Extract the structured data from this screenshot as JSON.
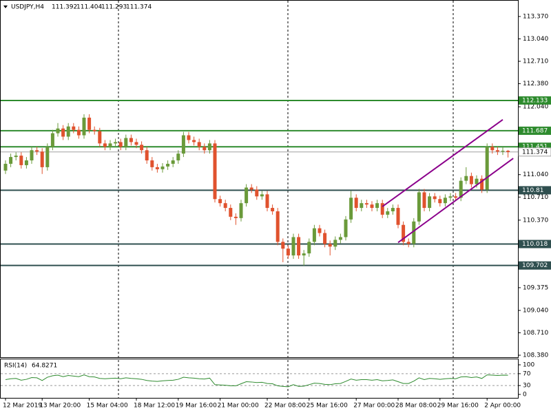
{
  "chart_data": {
    "type": "candlestick",
    "title": "USDJPY,H4",
    "bull_color": "#6a9a3a",
    "bear_color": "#e0522e",
    "categories": [
      "12 Mar 2019",
      null,
      null,
      null,
      null,
      null,
      null,
      "13 Mar 20:00",
      null,
      null,
      null,
      null,
      null,
      null,
      null,
      null,
      "15 Mar 04:00",
      null,
      null,
      null,
      null,
      null,
      null,
      null,
      null,
      "18 Mar 12:00",
      null,
      null,
      null,
      null,
      null,
      null,
      null,
      "19 Mar 16:00",
      null,
      null,
      null,
      null,
      null,
      null,
      null,
      "21 Mar 00:00",
      null,
      null,
      null,
      null,
      null,
      null,
      null,
      null,
      "22 Mar 08:00",
      null,
      null,
      null,
      null,
      null,
      null,
      null,
      "25 Mar 16:00",
      null,
      null,
      null,
      null,
      null,
      null,
      null,
      null,
      "27 Mar 00:00",
      null,
      null,
      null,
      null,
      null,
      null,
      null,
      "28 Mar 08:00",
      null,
      null,
      null,
      null,
      null,
      null,
      null,
      "29 Mar 16:00",
      null,
      null,
      null,
      null,
      null,
      null,
      null,
      null,
      "2 Apr 00:00",
      null,
      null,
      null,
      null
    ],
    "candles": [
      [
        111.1,
        111.25,
        111.05,
        111.2
      ],
      [
        111.2,
        111.35,
        111.15,
        111.3
      ],
      [
        111.3,
        111.37,
        111.25,
        111.32
      ],
      [
        111.32,
        111.37,
        111.13,
        111.18
      ],
      [
        111.18,
        111.3,
        111.13,
        111.25
      ],
      [
        111.25,
        111.45,
        111.2,
        111.4
      ],
      [
        111.4,
        111.45,
        111.33,
        111.38
      ],
      [
        111.38,
        111.43,
        111.05,
        111.15
      ],
      [
        111.15,
        111.5,
        111.1,
        111.45
      ],
      [
        111.45,
        111.7,
        111.4,
        111.65
      ],
      [
        111.65,
        111.8,
        111.6,
        111.72
      ],
      [
        111.72,
        111.77,
        111.55,
        111.6
      ],
      [
        111.6,
        111.8,
        111.55,
        111.75
      ],
      [
        111.75,
        111.8,
        111.65,
        111.7
      ],
      [
        111.7,
        111.75,
        111.57,
        111.62
      ],
      [
        111.62,
        111.93,
        111.57,
        111.88
      ],
      [
        111.88,
        111.93,
        111.65,
        111.7
      ],
      [
        111.7,
        111.75,
        111.63,
        111.68
      ],
      [
        111.68,
        111.73,
        111.45,
        111.5
      ],
      [
        111.5,
        111.55,
        111.4,
        111.45
      ],
      [
        111.45,
        111.55,
        111.4,
        111.5
      ],
      [
        111.5,
        111.57,
        111.45,
        111.52
      ],
      [
        111.52,
        111.57,
        111.4,
        111.45
      ],
      [
        111.45,
        111.63,
        111.4,
        111.58
      ],
      [
        111.58,
        111.63,
        111.47,
        111.52
      ],
      [
        111.52,
        111.57,
        111.43,
        111.48
      ],
      [
        111.48,
        111.53,
        111.35,
        111.4
      ],
      [
        111.4,
        111.45,
        111.2,
        111.25
      ],
      [
        111.25,
        111.3,
        111.1,
        111.15
      ],
      [
        111.15,
        111.2,
        111.07,
        111.12
      ],
      [
        111.12,
        111.21,
        111.07,
        111.16
      ],
      [
        111.16,
        111.25,
        111.11,
        111.2
      ],
      [
        111.2,
        111.3,
        111.15,
        111.25
      ],
      [
        111.25,
        111.4,
        111.2,
        111.35
      ],
      [
        111.35,
        111.67,
        111.3,
        111.62
      ],
      [
        111.62,
        111.67,
        111.5,
        111.55
      ],
      [
        111.55,
        111.6,
        111.47,
        111.52
      ],
      [
        111.52,
        111.57,
        111.4,
        111.45
      ],
      [
        111.45,
        111.5,
        111.35,
        111.4
      ],
      [
        111.4,
        111.55,
        111.35,
        111.5
      ],
      [
        111.5,
        111.55,
        110.63,
        110.68
      ],
      [
        110.68,
        110.73,
        110.57,
        110.62
      ],
      [
        110.62,
        110.67,
        110.5,
        110.55
      ],
      [
        110.55,
        110.6,
        110.37,
        110.42
      ],
      [
        110.42,
        110.47,
        110.3,
        110.4
      ],
      [
        110.4,
        110.67,
        110.35,
        110.62
      ],
      [
        110.62,
        110.9,
        110.57,
        110.85
      ],
      [
        110.85,
        110.9,
        110.77,
        110.82
      ],
      [
        110.82,
        110.87,
        110.67,
        110.72
      ],
      [
        110.72,
        110.8,
        110.67,
        110.75
      ],
      [
        110.75,
        110.8,
        110.5,
        110.55
      ],
      [
        110.55,
        110.6,
        110.45,
        110.5
      ],
      [
        110.5,
        110.55,
        110.0,
        110.05
      ],
      [
        110.05,
        110.1,
        109.75,
        109.95
      ],
      [
        109.95,
        110.0,
        109.8,
        109.85
      ],
      [
        109.85,
        110.17,
        109.8,
        110.12
      ],
      [
        110.12,
        110.17,
        109.8,
        109.85
      ],
      [
        109.85,
        109.93,
        109.7,
        109.88
      ],
      [
        109.88,
        110.1,
        109.83,
        110.05
      ],
      [
        110.05,
        110.3,
        110.0,
        110.25
      ],
      [
        110.25,
        110.3,
        110.13,
        110.18
      ],
      [
        110.18,
        110.23,
        109.97,
        110.02
      ],
      [
        110.02,
        110.07,
        109.85,
        109.98
      ],
      [
        109.98,
        110.13,
        109.93,
        110.08
      ],
      [
        110.08,
        110.17,
        110.03,
        110.12
      ],
      [
        110.12,
        110.43,
        110.07,
        110.38
      ],
      [
        110.38,
        110.8,
        110.33,
        110.7
      ],
      [
        110.7,
        110.75,
        110.5,
        110.55
      ],
      [
        110.55,
        110.67,
        110.5,
        110.62
      ],
      [
        110.62,
        110.67,
        110.55,
        110.6
      ],
      [
        110.6,
        110.65,
        110.5,
        110.55
      ],
      [
        110.55,
        110.67,
        110.5,
        110.62
      ],
      [
        110.62,
        110.67,
        110.4,
        110.45
      ],
      [
        110.45,
        110.55,
        110.4,
        110.5
      ],
      [
        110.5,
        110.6,
        110.45,
        110.55
      ],
      [
        110.55,
        110.6,
        110.25,
        110.3
      ],
      [
        110.3,
        110.35,
        110.0,
        110.05
      ],
      [
        110.05,
        110.1,
        109.97,
        110.02
      ],
      [
        110.02,
        110.4,
        109.97,
        110.35
      ],
      [
        110.35,
        110.83,
        110.3,
        110.78
      ],
      [
        110.78,
        110.83,
        110.5,
        110.55
      ],
      [
        110.55,
        110.77,
        110.5,
        110.72
      ],
      [
        110.72,
        110.77,
        110.63,
        110.68
      ],
      [
        110.68,
        110.73,
        110.57,
        110.62
      ],
      [
        110.62,
        110.75,
        110.57,
        110.7
      ],
      [
        110.7,
        110.77,
        110.65,
        110.72
      ],
      [
        110.72,
        110.77,
        110.65,
        110.7
      ],
      [
        110.7,
        111.0,
        110.65,
        110.95
      ],
      [
        110.95,
        111.15,
        110.9,
        111.02
      ],
      [
        111.02,
        111.07,
        110.85,
        110.9
      ],
      [
        110.9,
        111.03,
        110.85,
        110.98
      ],
      [
        110.98,
        111.03,
        110.77,
        110.82
      ],
      [
        110.82,
        111.5,
        110.77,
        111.45
      ],
      [
        111.45,
        111.5,
        111.35,
        111.4
      ],
      [
        111.4,
        111.45,
        111.33,
        111.38
      ],
      [
        111.38,
        111.44,
        111.33,
        111.392
      ],
      [
        111.392,
        111.404,
        111.293,
        111.374
      ]
    ],
    "ylim": [
      108.34,
      113.613
    ],
    "yticks": [
      {
        "value": 113.37,
        "label": "113.370"
      },
      {
        "value": 113.04,
        "label": "113.040"
      },
      {
        "value": 112.71,
        "label": "112.710"
      },
      {
        "value": 112.38,
        "label": "112.380"
      },
      {
        "value": 112.04,
        "label": "112.040"
      },
      {
        "value": 111.04,
        "label": "111.040"
      },
      {
        "value": 110.71,
        "label": "110.710"
      },
      {
        "value": 110.37,
        "label": "110.370"
      },
      109.375,
      {
        "value": 109.04,
        "label": "109.040"
      },
      {
        "value": 108.71,
        "label": "108.710"
      },
      {
        "value": 108.38,
        "label": "108.380"
      }
    ],
    "levels": [
      {
        "value": 112.133,
        "color": "#2e8b2e"
      },
      {
        "value": 111.687,
        "color": "#2e8b2e"
      },
      {
        "value": 111.451,
        "color": "#2e8b2e"
      },
      {
        "value": 110.81,
        "color": "#2f4f4f"
      },
      {
        "value": 110.018,
        "color": "#2f4f4f"
      },
      {
        "value": 109.702,
        "color": "#2f4f4f"
      }
    ],
    "trendlines": [
      {
        "x": [
          72,
          95
        ],
        "y": [
          110.57,
          111.85
        ],
        "color": "#8b008b"
      },
      {
        "x": [
          75,
          97
        ],
        "y": [
          110.04,
          111.28
        ],
        "color": "#8b008b"
      }
    ],
    "indicator": {
      "name": "RSI(14)",
      "color": "#2e8b2e",
      "ylim": [
        0,
        100
      ],
      "yticks": [
        100,
        70,
        30,
        0
      ],
      "levels": [
        70,
        30
      ],
      "values": [
        50,
        53,
        54,
        48,
        51,
        57,
        56,
        47,
        58,
        63,
        65,
        60,
        64,
        62,
        60,
        66,
        60,
        59,
        54,
        53,
        54,
        55,
        53,
        56,
        54,
        53,
        51,
        47,
        45,
        44,
        46,
        47,
        48,
        51,
        58,
        56,
        55,
        53,
        52,
        55,
        33,
        32,
        31,
        29,
        29,
        36,
        43,
        42,
        40,
        41,
        37,
        36,
        29,
        27,
        26,
        33,
        27,
        28,
        33,
        38,
        37,
        34,
        33,
        36,
        37,
        44,
        52,
        48,
        50,
        50,
        48,
        50,
        46,
        47,
        49,
        43,
        37,
        37,
        45,
        56,
        50,
        54,
        53,
        51,
        53,
        54,
        53,
        59,
        60,
        57,
        59,
        54,
        66,
        65,
        64,
        65,
        64.8271
      ]
    }
  }
}
